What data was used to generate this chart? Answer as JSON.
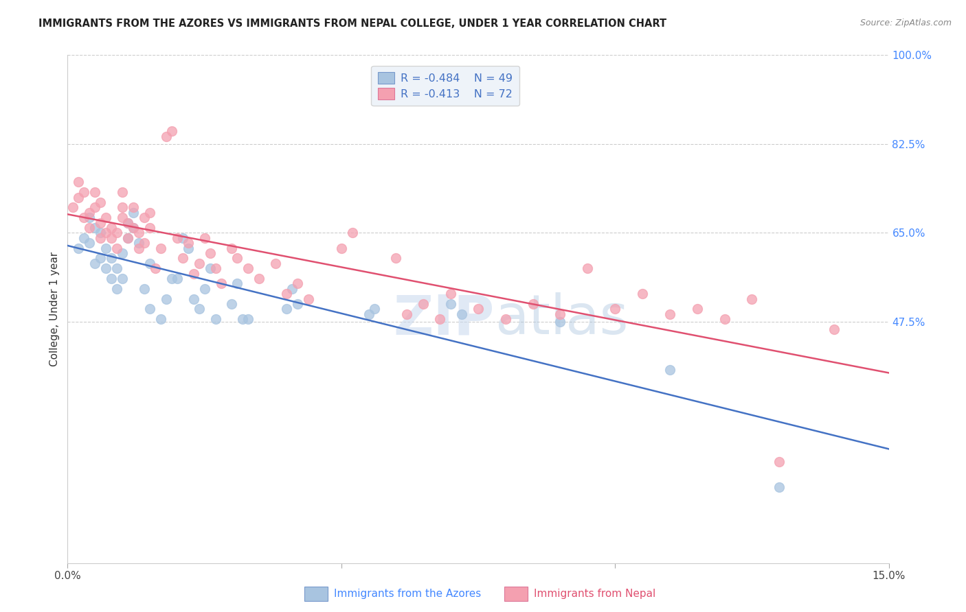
{
  "title": "IMMIGRANTS FROM THE AZORES VS IMMIGRANTS FROM NEPAL COLLEGE, UNDER 1 YEAR CORRELATION CHART",
  "source": "Source: ZipAtlas.com",
  "ylabel": "College, Under 1 year",
  "xlim": [
    0.0,
    0.15
  ],
  "ylim": [
    0.0,
    1.0
  ],
  "yticks": [
    0.0,
    0.475,
    0.65,
    0.825,
    1.0
  ],
  "yticklabels": [
    "",
    "47.5%",
    "65.0%",
    "82.5%",
    "100.0%"
  ],
  "azores_R": -0.484,
  "azores_N": 49,
  "nepal_R": -0.413,
  "nepal_N": 72,
  "azores_color": "#a8c4e0",
  "nepal_color": "#f4a0b0",
  "azores_line_color": "#4472c4",
  "nepal_line_color": "#e05070",
  "azores_color_text": "#4472c4",
  "nepal_color_text": "#e05070",
  "legend_facecolor": "#eaf0f8",
  "legend_edgecolor": "#cccccc",
  "azores_x": [
    0.002,
    0.003,
    0.004,
    0.004,
    0.005,
    0.005,
    0.006,
    0.006,
    0.007,
    0.007,
    0.008,
    0.008,
    0.009,
    0.009,
    0.01,
    0.01,
    0.011,
    0.011,
    0.012,
    0.012,
    0.013,
    0.014,
    0.015,
    0.015,
    0.017,
    0.018,
    0.019,
    0.02,
    0.021,
    0.022,
    0.023,
    0.024,
    0.025,
    0.026,
    0.027,
    0.03,
    0.031,
    0.032,
    0.033,
    0.04,
    0.041,
    0.042,
    0.055,
    0.056,
    0.07,
    0.072,
    0.09,
    0.11,
    0.13
  ],
  "azores_y": [
    0.62,
    0.64,
    0.63,
    0.68,
    0.59,
    0.66,
    0.6,
    0.65,
    0.58,
    0.62,
    0.56,
    0.6,
    0.54,
    0.58,
    0.56,
    0.61,
    0.64,
    0.67,
    0.66,
    0.69,
    0.63,
    0.54,
    0.5,
    0.59,
    0.48,
    0.52,
    0.56,
    0.56,
    0.64,
    0.62,
    0.52,
    0.5,
    0.54,
    0.58,
    0.48,
    0.51,
    0.55,
    0.48,
    0.48,
    0.5,
    0.54,
    0.51,
    0.49,
    0.5,
    0.51,
    0.49,
    0.475,
    0.38,
    0.15
  ],
  "nepal_x": [
    0.001,
    0.002,
    0.002,
    0.003,
    0.003,
    0.004,
    0.004,
    0.005,
    0.005,
    0.006,
    0.006,
    0.006,
    0.007,
    0.007,
    0.008,
    0.008,
    0.009,
    0.009,
    0.01,
    0.01,
    0.01,
    0.011,
    0.011,
    0.012,
    0.012,
    0.013,
    0.013,
    0.014,
    0.014,
    0.015,
    0.015,
    0.016,
    0.017,
    0.018,
    0.019,
    0.02,
    0.021,
    0.022,
    0.023,
    0.024,
    0.025,
    0.026,
    0.027,
    0.028,
    0.03,
    0.031,
    0.033,
    0.035,
    0.038,
    0.04,
    0.042,
    0.044,
    0.05,
    0.052,
    0.06,
    0.062,
    0.065,
    0.068,
    0.07,
    0.075,
    0.08,
    0.085,
    0.09,
    0.095,
    0.1,
    0.105,
    0.11,
    0.115,
    0.12,
    0.125,
    0.13,
    0.14
  ],
  "nepal_y": [
    0.7,
    0.72,
    0.75,
    0.68,
    0.73,
    0.66,
    0.69,
    0.7,
    0.73,
    0.64,
    0.67,
    0.71,
    0.65,
    0.68,
    0.64,
    0.66,
    0.62,
    0.65,
    0.68,
    0.7,
    0.73,
    0.67,
    0.64,
    0.66,
    0.7,
    0.62,
    0.65,
    0.68,
    0.63,
    0.66,
    0.69,
    0.58,
    0.62,
    0.84,
    0.85,
    0.64,
    0.6,
    0.63,
    0.57,
    0.59,
    0.64,
    0.61,
    0.58,
    0.55,
    0.62,
    0.6,
    0.58,
    0.56,
    0.59,
    0.53,
    0.55,
    0.52,
    0.62,
    0.65,
    0.6,
    0.49,
    0.51,
    0.48,
    0.53,
    0.5,
    0.48,
    0.51,
    0.49,
    0.58,
    0.5,
    0.53,
    0.49,
    0.5,
    0.48,
    0.52,
    0.2,
    0.46
  ]
}
